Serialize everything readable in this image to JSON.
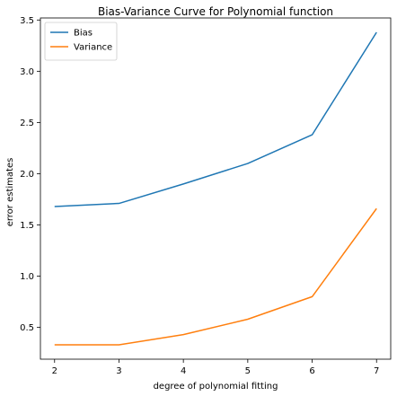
{
  "chart_data": {
    "type": "line",
    "title": "Bias-Variance Curve for Polynomial function",
    "xlabel": "degree of polynomial fitting",
    "ylabel": "error estimates",
    "x": [
      2,
      3,
      4,
      5,
      6,
      7
    ],
    "xlim": [
      1.78,
      7.22
    ],
    "ylim": [
      0.19,
      3.52
    ],
    "xticks": [
      "2",
      "3",
      "4",
      "5",
      "6",
      "7"
    ],
    "yticks": [
      "0.5",
      "1.0",
      "1.5",
      "2.0",
      "2.5",
      "3.0",
      "3.5"
    ],
    "grid": false,
    "legend_position": "top-left",
    "series": [
      {
        "name": "Bias",
        "color": "#1f77b4",
        "values": [
          1.68,
          1.71,
          1.9,
          2.1,
          2.38,
          3.38
        ]
      },
      {
        "name": "Variance",
        "color": "#ff7f0e",
        "values": [
          0.33,
          0.33,
          0.43,
          0.58,
          0.8,
          1.66
        ]
      }
    ]
  }
}
